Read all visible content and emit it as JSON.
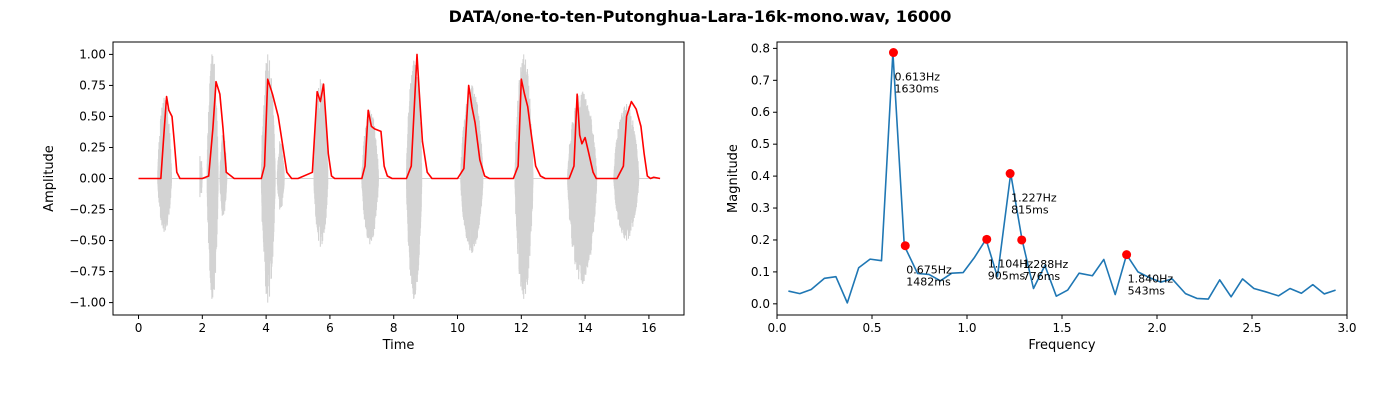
{
  "figure": {
    "title": "DATA/one-to-ten-Putonghua-Lara-16k-mono.wav, 16000"
  },
  "chart_data": [
    {
      "type": "line",
      "xlabel": "Time",
      "ylabel": "Amplitude",
      "xlim": [
        -0.8,
        17.1
      ],
      "ylim": [
        -1.1,
        1.1
      ],
      "xticks": [
        0,
        2,
        4,
        6,
        8,
        10,
        12,
        14,
        16
      ],
      "xtick_labels": [
        "0",
        "2",
        "4",
        "6",
        "8",
        "10",
        "12",
        "14",
        "16"
      ],
      "yticks": [
        -1.0,
        -0.75,
        -0.5,
        -0.25,
        0.0,
        0.25,
        0.5,
        0.75,
        1.0
      ],
      "ytick_labels": [
        "−1.00",
        "−0.75",
        "−0.50",
        "−0.25",
        "0.00",
        "0.25",
        "0.50",
        "0.75",
        "1.00"
      ],
      "grid": false,
      "colors": {
        "waveform": "#d3d3d3",
        "envelope": "#ff0000"
      },
      "waveform_segments": [
        [
          0.6,
          1.1,
          0.65,
          -0.43
        ],
        [
          1.95,
          2.0,
          0.18,
          -0.15
        ],
        [
          2.15,
          2.55,
          1.0,
          -0.97
        ],
        [
          2.55,
          2.8,
          0.35,
          -0.3
        ],
        [
          3.85,
          4.35,
          1.0,
          -1.0
        ],
        [
          4.35,
          4.6,
          0.3,
          -0.25
        ],
        [
          5.5,
          6.0,
          0.8,
          -0.55
        ],
        [
          7.0,
          7.6,
          0.55,
          -0.53
        ],
        [
          8.4,
          8.95,
          0.95,
          -0.97
        ],
        [
          10.1,
          10.9,
          0.75,
          -0.6
        ],
        [
          11.8,
          12.45,
          1.0,
          -0.97
        ],
        [
          13.45,
          14.5,
          0.7,
          -0.85
        ],
        [
          14.9,
          15.8,
          0.6,
          -0.5
        ]
      ],
      "envelope": {
        "x": [
          0.0,
          0.7,
          0.78,
          0.88,
          0.95,
          1.05,
          1.12,
          1.2,
          1.3,
          1.4,
          2.0,
          2.2,
          2.33,
          2.43,
          2.55,
          2.65,
          2.75,
          3.0,
          3.85,
          3.95,
          4.05,
          4.2,
          4.38,
          4.5,
          4.65,
          4.8,
          5.0,
          5.45,
          5.6,
          5.7,
          5.8,
          5.87,
          5.95,
          6.05,
          6.15,
          6.3,
          6.6,
          7.0,
          7.1,
          7.2,
          7.3,
          7.4,
          7.6,
          7.7,
          7.8,
          7.95,
          8.4,
          8.55,
          8.65,
          8.73,
          8.8,
          8.9,
          9.05,
          9.2,
          9.5,
          10.0,
          10.2,
          10.35,
          10.45,
          10.55,
          10.7,
          10.85,
          11.0,
          11.2,
          11.75,
          11.9,
          12.0,
          12.1,
          12.2,
          12.3,
          12.45,
          12.6,
          12.75,
          12.95,
          13.5,
          13.65,
          13.75,
          13.83,
          13.9,
          14.0,
          14.1,
          14.25,
          14.35,
          14.45,
          14.6,
          15.0,
          15.2,
          15.3,
          15.45,
          15.6,
          15.75,
          15.85,
          15.95,
          16.05,
          16.15,
          16.35
        ],
        "y": [
          0.0,
          0.0,
          0.3,
          0.66,
          0.55,
          0.5,
          0.3,
          0.05,
          0.0,
          0.0,
          0.0,
          0.02,
          0.4,
          0.78,
          0.68,
          0.4,
          0.05,
          0.0,
          0.0,
          0.1,
          0.8,
          0.68,
          0.5,
          0.3,
          0.05,
          0.0,
          0.0,
          0.05,
          0.7,
          0.62,
          0.76,
          0.5,
          0.2,
          0.02,
          0.0,
          0.0,
          0.0,
          0.0,
          0.1,
          0.55,
          0.42,
          0.4,
          0.38,
          0.1,
          0.02,
          0.0,
          0.0,
          0.1,
          0.6,
          1.0,
          0.7,
          0.3,
          0.05,
          0.0,
          0.0,
          0.0,
          0.08,
          0.75,
          0.58,
          0.45,
          0.15,
          0.02,
          0.0,
          0.0,
          0.0,
          0.1,
          0.8,
          0.68,
          0.58,
          0.38,
          0.1,
          0.02,
          0.0,
          0.0,
          0.0,
          0.1,
          0.68,
          0.35,
          0.28,
          0.33,
          0.22,
          0.05,
          0.0,
          0.0,
          0.0,
          0.0,
          0.1,
          0.5,
          0.62,
          0.56,
          0.42,
          0.2,
          0.02,
          0.0,
          0.01,
          0.0
        ]
      }
    },
    {
      "type": "line",
      "xlabel": "Frequency",
      "ylabel": "Magnitude",
      "xlim": [
        0.0,
        3.0
      ],
      "ylim": [
        -0.035,
        0.82
      ],
      "xticks": [
        0.0,
        0.5,
        1.0,
        1.5,
        2.0,
        2.5,
        3.0
      ],
      "xtick_labels": [
        "0.0",
        "0.5",
        "1.0",
        "1.5",
        "2.0",
        "2.5",
        "3.0"
      ],
      "yticks": [
        0.0,
        0.1,
        0.2,
        0.3,
        0.4,
        0.5,
        0.6,
        0.7,
        0.8
      ],
      "ytick_labels": [
        "0.0",
        "0.1",
        "0.2",
        "0.3",
        "0.4",
        "0.5",
        "0.6",
        "0.7",
        "0.8"
      ],
      "grid": false,
      "colors": {
        "line": "#1f77b4",
        "peak": "#ff0000"
      },
      "series": {
        "x": [
          0.06,
          0.12,
          0.18,
          0.25,
          0.31,
          0.37,
          0.43,
          0.49,
          0.55,
          0.61,
          0.67,
          0.74,
          0.8,
          0.86,
          0.92,
          0.98,
          1.04,
          1.1,
          1.16,
          1.23,
          1.29,
          1.35,
          1.41,
          1.47,
          1.53,
          1.59,
          1.66,
          1.72,
          1.78,
          1.84,
          1.9,
          1.96,
          2.02,
          2.08,
          2.15,
          2.21,
          2.27,
          2.33,
          2.39,
          2.45,
          2.51,
          2.57,
          2.64,
          2.7,
          2.76,
          2.82,
          2.88,
          2.94
        ],
        "y": [
          0.04,
          0.032,
          0.045,
          0.08,
          0.085,
          0.003,
          0.113,
          0.14,
          0.135,
          0.787,
          0.182,
          0.095,
          0.092,
          0.072,
          0.096,
          0.098,
          0.146,
          0.202,
          0.085,
          0.408,
          0.2,
          0.048,
          0.12,
          0.024,
          0.043,
          0.096,
          0.088,
          0.139,
          0.029,
          0.154,
          0.1,
          0.082,
          0.068,
          0.078,
          0.032,
          0.017,
          0.015,
          0.075,
          0.022,
          0.078,
          0.048,
          0.038,
          0.025,
          0.048,
          0.033,
          0.06,
          0.031,
          0.043
        ]
      },
      "peaks": [
        {
          "x": 0.613,
          "y": 0.787,
          "label_freq": "0.613Hz",
          "label_ms": "1630ms"
        },
        {
          "x": 0.675,
          "y": 0.182,
          "label_freq": "0.675Hz",
          "label_ms": "1482ms"
        },
        {
          "x": 1.104,
          "y": 0.202,
          "label_freq": "1.104Hz",
          "label_ms": "905ms"
        },
        {
          "x": 1.227,
          "y": 0.408,
          "label_freq": "1.227Hz",
          "label_ms": "815ms"
        },
        {
          "x": 1.288,
          "y": 0.2,
          "label_freq": "1.288Hz",
          "label_ms": "776ms"
        },
        {
          "x": 1.84,
          "y": 0.154,
          "label_freq": "1.840Hz",
          "label_ms": "543ms"
        }
      ]
    }
  ]
}
